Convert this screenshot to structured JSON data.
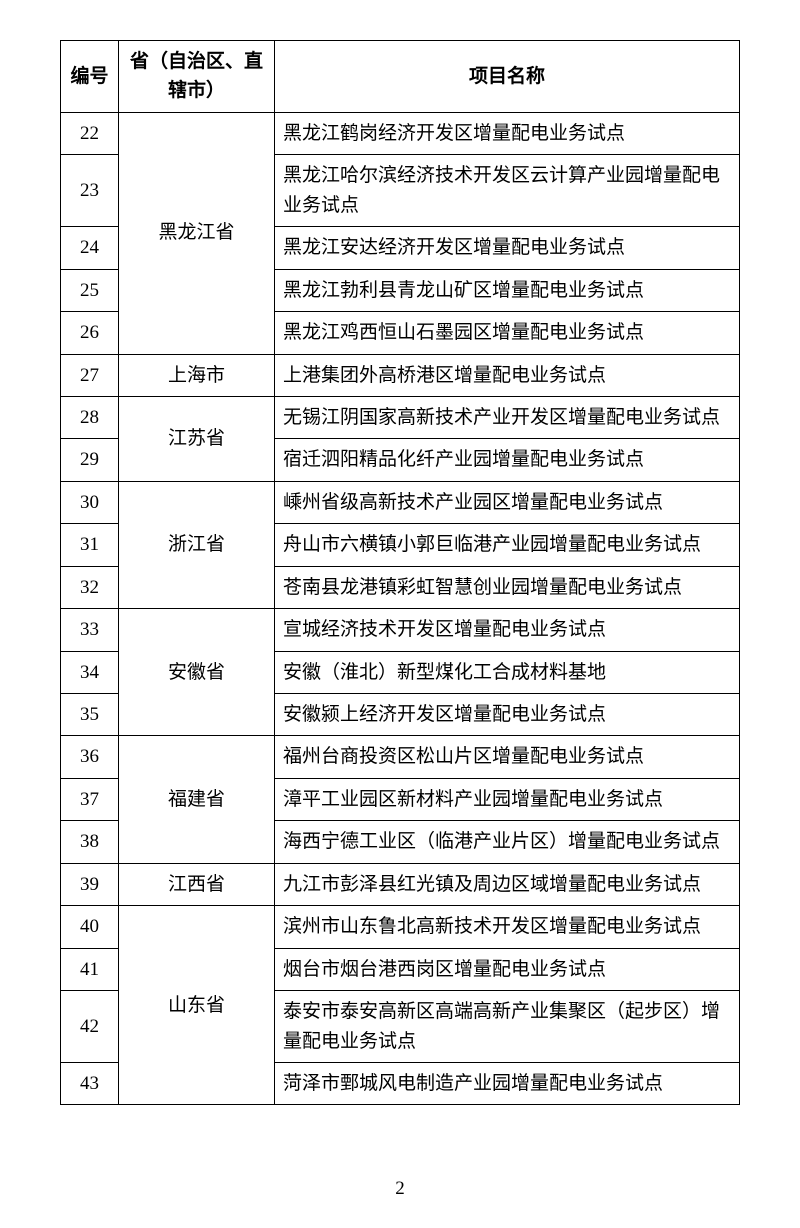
{
  "table": {
    "header": {
      "c1": "编号",
      "c2": "省（自治区、直辖市）",
      "c3": "项目名称"
    },
    "rows": [
      {
        "n": "22",
        "province": "黑龙江省",
        "rowspan": 5,
        "project": "黑龙江鹤岗经济开发区增量配电业务试点"
      },
      {
        "n": "23",
        "project": "黑龙江哈尔滨经济技术开发区云计算产业园增量配电业务试点"
      },
      {
        "n": "24",
        "project": "黑龙江安达经济开发区增量配电业务试点"
      },
      {
        "n": "25",
        "project": "黑龙江勃利县青龙山矿区增量配电业务试点"
      },
      {
        "n": "26",
        "project": "黑龙江鸡西恒山石墨园区增量配电业务试点"
      },
      {
        "n": "27",
        "province": "上海市",
        "rowspan": 1,
        "project": "上港集团外高桥港区增量配电业务试点"
      },
      {
        "n": "28",
        "province": "江苏省",
        "rowspan": 2,
        "project": "无锡江阴国家高新技术产业开发区增量配电业务试点"
      },
      {
        "n": "29",
        "project": "宿迁泗阳精品化纤产业园增量配电业务试点"
      },
      {
        "n": "30",
        "province": "浙江省",
        "rowspan": 3,
        "project": "嵊州省级高新技术产业园区增量配电业务试点"
      },
      {
        "n": "31",
        "project": "舟山市六横镇小郭巨临港产业园增量配电业务试点"
      },
      {
        "n": "32",
        "project": "苍南县龙港镇彩虹智慧创业园增量配电业务试点"
      },
      {
        "n": "33",
        "province": "安徽省",
        "rowspan": 3,
        "project": "宣城经济技术开发区增量配电业务试点"
      },
      {
        "n": "34",
        "project": "安徽（淮北）新型煤化工合成材料基地"
      },
      {
        "n": "35",
        "project": "安徽颍上经济开发区增量配电业务试点"
      },
      {
        "n": "36",
        "province": "福建省",
        "rowspan": 3,
        "project": "福州台商投资区松山片区增量配电业务试点"
      },
      {
        "n": "37",
        "project": "漳平工业园区新材料产业园增量配电业务试点"
      },
      {
        "n": "38",
        "project": "海西宁德工业区（临港产业片区）增量配电业务试点"
      },
      {
        "n": "39",
        "province": "江西省",
        "rowspan": 1,
        "project": "九江市彭泽县红光镇及周边区域增量配电业务试点"
      },
      {
        "n": "40",
        "province": "山东省",
        "rowspan": 4,
        "project": "滨州市山东鲁北高新技术开发区增量配电业务试点"
      },
      {
        "n": "41",
        "project": "烟台市烟台港西岗区增量配电业务试点"
      },
      {
        "n": "42",
        "project": "泰安市泰安高新区高端高新产业集聚区（起步区）增量配电业务试点"
      },
      {
        "n": "43",
        "project": "菏泽市鄄城风电制造产业园增量配电业务试点"
      }
    ]
  },
  "page_number": "2",
  "style": {
    "border_color": "#000000",
    "font_size_pt": 14,
    "background": "#ffffff"
  }
}
